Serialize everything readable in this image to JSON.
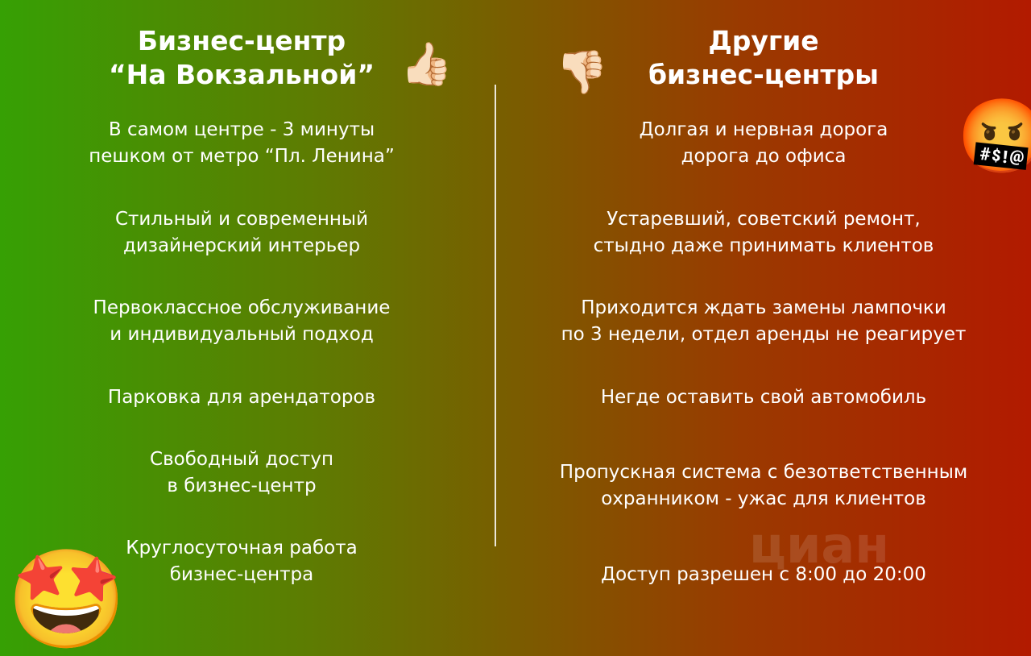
{
  "left": {
    "title_line1": "Бизнес-центр",
    "title_line2": "“На Вокзальной”",
    "items": [
      [
        "В самом центре - 3 минуты",
        "пешком от метро “Пл. Ленина”"
      ],
      [
        "Стильный и современный",
        "дизайнерский интерьер"
      ],
      [
        "Первоклассное обслуживание",
        "и индивидуальный подход"
      ],
      [
        "Парковка для арендаторов",
        ""
      ],
      [
        "Свободный доступ",
        "в бизнес-центр"
      ],
      [
        "Круглосуточная работа",
        "бизнес-центра"
      ]
    ]
  },
  "right": {
    "title_line1": "Другие",
    "title_line2": "бизнес-центры",
    "items": [
      [
        "Долгая и нервная дорога",
        "дорога до офиса"
      ],
      [
        "Устаревший, советский ремонт,",
        "стыдно даже принимать клиентов"
      ],
      [
        "Приходится ждать замены лампочки",
        "по 3 недели, отдел аренды не реагирует"
      ],
      [
        "Негде оставить свой автомобиль",
        ""
      ],
      [
        "Пропускная система с безответственным",
        "охранником - ужас для клиентов"
      ],
      [
        "Доступ разрешен с 8:00 до 20:00",
        ""
      ]
    ]
  },
  "emojis": {
    "thumbs_up": "👍🏻",
    "thumbs_down": "👎🏻",
    "cursing": "🤬",
    "star_struck": "🤩"
  },
  "watermark": "циан",
  "colors": {
    "left": "#36a004",
    "right": "#b21a00"
  }
}
